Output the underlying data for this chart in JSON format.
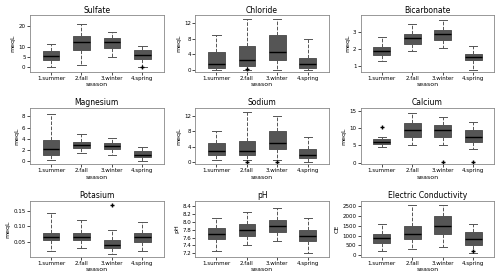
{
  "panels": [
    {
      "title": "Sulfate",
      "ylabel": "meqL",
      "ylim": [
        -2,
        25
      ],
      "yticks": [
        0,
        5,
        10,
        20
      ],
      "seasons": [
        "1.summer",
        "2.fall",
        "3.winter",
        "4.spring"
      ],
      "boxes": [
        {
          "whislo": 0.0,
          "q1": 3.5,
          "med": 5.5,
          "q3": 8.0,
          "whishi": 11.0,
          "fliers": []
        },
        {
          "whislo": 1.0,
          "q1": 8.5,
          "med": 12.0,
          "q3": 15.0,
          "whishi": 21.0,
          "fliers": []
        },
        {
          "whislo": 5.0,
          "q1": 9.5,
          "med": 12.0,
          "q3": 14.0,
          "whishi": 17.0,
          "fliers": []
        },
        {
          "whislo": 0.0,
          "q1": 4.0,
          "med": 6.0,
          "q3": 8.5,
          "whishi": 10.5,
          "fliers": [
            0.2
          ]
        }
      ]
    },
    {
      "title": "Chloride",
      "ylabel": "meqL",
      "ylim": [
        -0.5,
        14
      ],
      "yticks": [
        0,
        4,
        8,
        12
      ],
      "seasons": [
        "1.summer",
        "2.fall",
        "3.winter",
        "4.spring"
      ],
      "boxes": [
        {
          "whislo": 0.0,
          "q1": 0.5,
          "med": 1.5,
          "q3": 4.5,
          "whishi": 9.0,
          "fliers": []
        },
        {
          "whislo": 0.0,
          "q1": 1.0,
          "med": 2.5,
          "q3": 6.0,
          "whishi": 13.0,
          "fliers": [
            0.2
          ]
        },
        {
          "whislo": 0.0,
          "q1": 2.5,
          "med": 4.5,
          "q3": 9.0,
          "whishi": 13.0,
          "fliers": []
        },
        {
          "whislo": 0.0,
          "q1": 0.5,
          "med": 1.5,
          "q3": 3.0,
          "whishi": 8.0,
          "fliers": []
        }
      ]
    },
    {
      "title": "Bicarbonate",
      "ylabel": "meqL",
      "ylim": [
        0.7,
        4.0
      ],
      "yticks": [
        1.0,
        2.0,
        3.0
      ],
      "seasons": [
        "1.summer",
        "2.fall",
        "3.winter",
        "4.spring"
      ],
      "boxes": [
        {
          "whislo": 1.3,
          "q1": 1.65,
          "med": 1.9,
          "q3": 2.15,
          "whishi": 2.7,
          "fliers": []
        },
        {
          "whislo": 1.9,
          "q1": 2.3,
          "med": 2.65,
          "q3": 2.9,
          "whishi": 3.5,
          "fliers": []
        },
        {
          "whislo": 2.1,
          "q1": 2.55,
          "med": 2.9,
          "q3": 3.15,
          "whishi": 3.7,
          "fliers": []
        },
        {
          "whislo": 0.8,
          "q1": 1.35,
          "med": 1.55,
          "q3": 1.75,
          "whishi": 2.2,
          "fliers": []
        }
      ]
    },
    {
      "title": "Magnesium",
      "ylabel": "meqL",
      "ylim": [
        -0.5,
        9.5
      ],
      "yticks": [
        0,
        2,
        4,
        6,
        8
      ],
      "seasons": [
        "1.summer",
        "2.fall",
        "3.winter",
        "4.spring"
      ],
      "boxes": [
        {
          "whislo": 0.3,
          "q1": 1.2,
          "med": 2.2,
          "q3": 3.8,
          "whishi": 8.5,
          "fliers": []
        },
        {
          "whislo": 1.5,
          "q1": 2.4,
          "med": 2.9,
          "q3": 3.5,
          "whishi": 4.8,
          "fliers": []
        },
        {
          "whislo": 1.2,
          "q1": 2.2,
          "med": 2.7,
          "q3": 3.2,
          "whishi": 4.2,
          "fliers": []
        },
        {
          "whislo": 0.0,
          "q1": 0.8,
          "med": 1.2,
          "q3": 1.8,
          "whishi": 2.5,
          "fliers": []
        }
      ]
    },
    {
      "title": "Sodium",
      "ylabel": "meqL",
      "ylim": [
        -0.5,
        14
      ],
      "yticks": [
        0,
        4,
        8,
        12
      ],
      "seasons": [
        "1.summer",
        "2.fall",
        "3.winter",
        "4.spring"
      ],
      "boxes": [
        {
          "whislo": 0.5,
          "q1": 2.0,
          "med": 3.0,
          "q3": 5.0,
          "whishi": 8.0,
          "fliers": []
        },
        {
          "whislo": 0.5,
          "q1": 2.0,
          "med": 3.0,
          "q3": 5.5,
          "whishi": 13.0,
          "fliers": [
            0.2
          ]
        },
        {
          "whislo": 0.5,
          "q1": 3.5,
          "med": 5.0,
          "q3": 8.0,
          "whishi": 12.0,
          "fliers": [
            0.2
          ]
        },
        {
          "whislo": 0.0,
          "q1": 1.0,
          "med": 2.0,
          "q3": 3.5,
          "whishi": 6.5,
          "fliers": []
        }
      ]
    },
    {
      "title": "Calcium",
      "ylabel": "meqL",
      "ylim": [
        -0.5,
        16
      ],
      "yticks": [
        0,
        5,
        10,
        15
      ],
      "seasons": [
        "1.summer",
        "2.fall",
        "3.winter",
        "4.spring"
      ],
      "boxes": [
        {
          "whislo": 4.5,
          "q1": 5.5,
          "med": 6.0,
          "q3": 6.8,
          "whishi": 7.5,
          "fliers": [
            10.5
          ]
        },
        {
          "whislo": 5.0,
          "q1": 7.5,
          "med": 9.5,
          "q3": 11.5,
          "whishi": 14.5,
          "fliers": []
        },
        {
          "whislo": 5.0,
          "q1": 7.5,
          "med": 9.5,
          "q3": 11.0,
          "whishi": 13.5,
          "fliers": [
            0.2
          ]
        },
        {
          "whislo": 4.0,
          "q1": 6.0,
          "med": 7.5,
          "q3": 9.5,
          "whishi": 12.0,
          "fliers": [
            0.2
          ]
        }
      ]
    },
    {
      "title": "Potasium",
      "ylabel": "meqL",
      "ylim": [
        0.0,
        0.185
      ],
      "yticks": [
        0.05,
        0.1,
        0.15
      ],
      "seasons": [
        "1.summer",
        "2.fall",
        "3.winter",
        "4.spring"
      ],
      "boxes": [
        {
          "whislo": 0.02,
          "q1": 0.055,
          "med": 0.065,
          "q3": 0.08,
          "whishi": 0.145,
          "fliers": []
        },
        {
          "whislo": 0.03,
          "q1": 0.055,
          "med": 0.065,
          "q3": 0.08,
          "whishi": 0.12,
          "fliers": []
        },
        {
          "whislo": 0.01,
          "q1": 0.03,
          "med": 0.04,
          "q3": 0.055,
          "whishi": 0.09,
          "fliers": [
            0.17
          ]
        },
        {
          "whislo": 0.02,
          "q1": 0.05,
          "med": 0.065,
          "q3": 0.08,
          "whishi": 0.115,
          "fliers": []
        }
      ]
    },
    {
      "title": "pH",
      "ylabel": "pH",
      "ylim": [
        7.1,
        8.55
      ],
      "yticks": [
        7.2,
        7.4,
        7.6,
        7.8,
        8.0,
        8.2,
        8.4
      ],
      "seasons": [
        "1.summer",
        "2.fall",
        "3.winter",
        "4.spring"
      ],
      "boxes": [
        {
          "whislo": 7.25,
          "q1": 7.55,
          "med": 7.7,
          "q3": 7.85,
          "whishi": 8.1,
          "fliers": []
        },
        {
          "whislo": 7.4,
          "q1": 7.65,
          "med": 7.8,
          "q3": 7.95,
          "whishi": 8.25,
          "fliers": []
        },
        {
          "whislo": 7.5,
          "q1": 7.75,
          "med": 7.9,
          "q3": 8.05,
          "whishi": 8.35,
          "fliers": []
        },
        {
          "whislo": 7.2,
          "q1": 7.5,
          "med": 7.65,
          "q3": 7.8,
          "whishi": 8.1,
          "fliers": []
        }
      ]
    },
    {
      "title": "Electric Conductivity",
      "ylabel": "CE",
      "ylim": [
        -100,
        2800
      ],
      "yticks": [
        0,
        500,
        1000,
        1500,
        2000,
        2500
      ],
      "seasons": [
        "1.summer",
        "2.fall",
        "3.winter",
        "4.spring"
      ],
      "boxes": [
        {
          "whislo": 200,
          "q1": 600,
          "med": 850,
          "q3": 1100,
          "whishi": 1600,
          "fliers": []
        },
        {
          "whislo": 300,
          "q1": 800,
          "med": 1100,
          "q3": 1500,
          "whishi": 2600,
          "fliers": []
        },
        {
          "whislo": 400,
          "q1": 1100,
          "med": 1500,
          "q3": 2000,
          "whishi": 2600,
          "fliers": []
        },
        {
          "whislo": 100,
          "q1": 500,
          "med": 800,
          "q3": 1200,
          "whishi": 1600,
          "fliers": [
            200
          ]
        }
      ]
    }
  ],
  "xlabel": "season",
  "background_color": "#ffffff",
  "box_facecolor": "white",
  "box_edgecolor": "#555555",
  "median_color": "black",
  "whisker_color": "#555555",
  "flier_color": "#555555"
}
